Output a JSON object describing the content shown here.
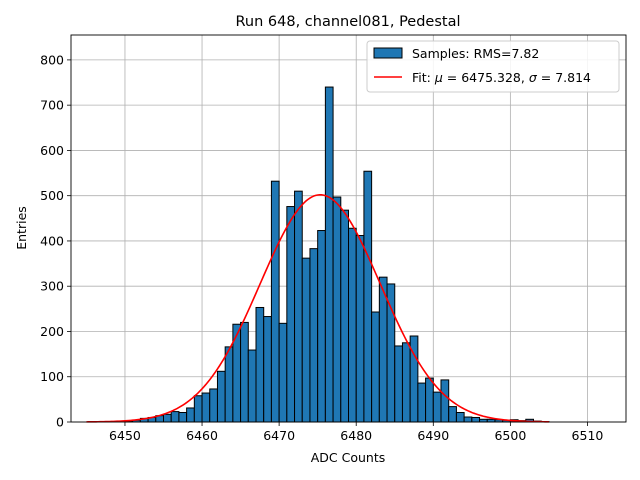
{
  "chart_data": {
    "type": "bar",
    "title": "Run 648, channel081, Pedestal",
    "xlabel": "ADC Counts",
    "ylabel": "Entries",
    "xlim": [
      6443,
      6515
    ],
    "ylim": [
      0,
      855
    ],
    "xticks": [
      "6450",
      "6460",
      "6470",
      "6480",
      "6490",
      "6500",
      "6510"
    ],
    "yticks": [
      "0",
      "100",
      "200",
      "300",
      "400",
      "500",
      "600",
      "700",
      "800"
    ],
    "grid": true,
    "legend_position": "top-right",
    "bin_width": 1,
    "colors": {
      "bar": "#1f77b4",
      "bar_edge": "#000000",
      "fit": "#ff0000",
      "grid": "#b0b0b0"
    },
    "histogram": {
      "name": "Samples: RMS=7.82",
      "bins": [
        [
          6450,
          2
        ],
        [
          6451,
          4
        ],
        [
          6452,
          8
        ],
        [
          6453,
          10
        ],
        [
          6454,
          14
        ],
        [
          6455,
          17
        ],
        [
          6456,
          23
        ],
        [
          6457,
          21
        ],
        [
          6458,
          31
        ],
        [
          6459,
          58
        ],
        [
          6460,
          64
        ],
        [
          6461,
          73
        ],
        [
          6462,
          112
        ],
        [
          6463,
          166
        ],
        [
          6464,
          216
        ],
        [
          6465,
          220
        ],
        [
          6466,
          159
        ],
        [
          6467,
          253
        ],
        [
          6468,
          233
        ],
        [
          6469,
          532
        ],
        [
          6470,
          218
        ],
        [
          6471,
          476
        ],
        [
          6472,
          510
        ],
        [
          6473,
          362
        ],
        [
          6474,
          383
        ],
        [
          6475,
          423
        ],
        [
          6476,
          740
        ],
        [
          6477,
          497
        ],
        [
          6478,
          468
        ],
        [
          6479,
          428
        ],
        [
          6480,
          412
        ],
        [
          6481,
          554
        ],
        [
          6482,
          243
        ],
        [
          6483,
          320
        ],
        [
          6484,
          305
        ],
        [
          6485,
          168
        ],
        [
          6486,
          175
        ],
        [
          6487,
          190
        ],
        [
          6488,
          86
        ],
        [
          6489,
          97
        ],
        [
          6490,
          66
        ],
        [
          6491,
          93
        ],
        [
          6492,
          34
        ],
        [
          6493,
          21
        ],
        [
          6494,
          11
        ],
        [
          6495,
          10
        ],
        [
          6496,
          6
        ],
        [
          6497,
          6
        ],
        [
          6498,
          5
        ],
        [
          6499,
          4
        ],
        [
          6500,
          5
        ],
        [
          6501,
          3
        ],
        [
          6502,
          6
        ],
        [
          6503,
          2
        ],
        [
          6504,
          1
        ]
      ]
    },
    "fit": {
      "name_prefix": "Fit: ",
      "mu_symbol": "μ",
      "mu_value": "6475.328",
      "sigma_symbol": "σ",
      "sigma_value": "7.814",
      "amplitude": 502,
      "x_range": [
        6445,
        6505
      ]
    }
  }
}
